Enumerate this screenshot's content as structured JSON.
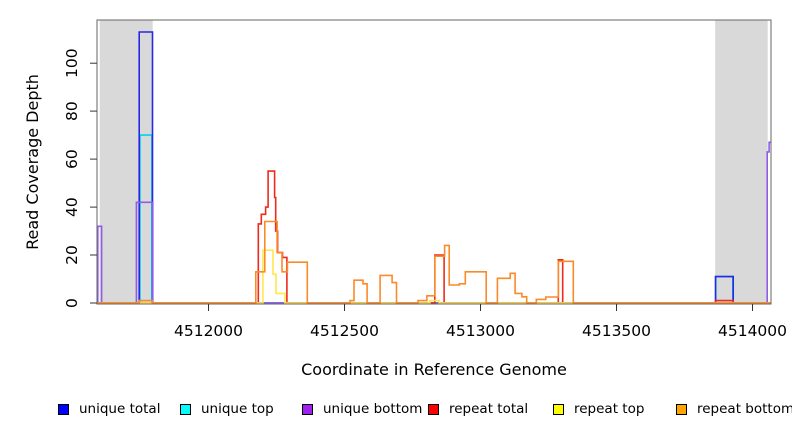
{
  "chart_data": {
    "type": "line",
    "title": "",
    "xlabel": "Coordinate in Reference Genome",
    "ylabel": "Read Coverage Depth",
    "x_ticks": [
      4512000,
      4512500,
      4513000,
      4513500,
      4514000
    ],
    "y_ticks": [
      0,
      20,
      40,
      60,
      80,
      100
    ],
    "xlim": [
      4511590,
      4514068
    ],
    "ylim": [
      0,
      118
    ],
    "grid": false,
    "legend_position": "bottom",
    "shade_color": "#d9d9d9",
    "border_color": "#666666",
    "shaded_regions": [
      {
        "from": 4511600,
        "to": 4511795
      },
      {
        "from": 4513863,
        "to": 4514056
      }
    ],
    "draw_order": [
      1,
      0,
      2,
      3,
      4,
      5
    ],
    "series": [
      {
        "name": "unique-total",
        "label": "unique total",
        "swatch_color": "#0000ff",
        "line_color": "#2727e8",
        "points": [
          [
            4511590,
            0
          ],
          [
            4511745,
            113
          ],
          [
            4511794,
            0
          ],
          [
            4513864,
            11
          ],
          [
            4513929,
            0
          ]
        ]
      },
      {
        "name": "unique-top",
        "label": "unique top",
        "swatch_color": "#00ffff",
        "line_color": "#00d5e8",
        "points": [
          [
            4511590,
            0
          ],
          [
            4511748,
            70
          ],
          [
            4511792,
            0
          ],
          [
            4513865,
            11
          ],
          [
            4513928,
            0
          ]
        ]
      },
      {
        "name": "unique-bottom",
        "label": "unique bottom",
        "swatch_color": "#a020f0",
        "line_color": "#8f5de8",
        "points": [
          [
            4511590,
            0
          ],
          [
            4511593,
            32
          ],
          [
            4511607,
            0
          ],
          [
            4511735,
            42
          ],
          [
            4511795,
            0
          ],
          [
            4514054,
            63
          ],
          [
            4514061,
            67
          ]
        ]
      },
      {
        "name": "repeat-total",
        "label": "repeat total",
        "swatch_color": "#ff0000",
        "line_color": "#ee2a1e",
        "points": [
          [
            4511590,
            0
          ],
          [
            4512183,
            33
          ],
          [
            4512194,
            37
          ],
          [
            4512210,
            40
          ],
          [
            4512219,
            55
          ],
          [
            4512243,
            44
          ],
          [
            4512247,
            30
          ],
          [
            4512254,
            21
          ],
          [
            4512272,
            19
          ],
          [
            4512288,
            0
          ],
          [
            4512832,
            20
          ],
          [
            4512866,
            0
          ],
          [
            4513286,
            18
          ],
          [
            4513302,
            0
          ],
          [
            4513864,
            1
          ],
          [
            4513929,
            0
          ]
        ]
      },
      {
        "name": "repeat-top",
        "label": "repeat top",
        "swatch_color": "#ffff00",
        "line_color": "#ffe84d",
        "points": [
          [
            4511590,
            0
          ],
          [
            4512200,
            22
          ],
          [
            4512237,
            12
          ],
          [
            4512248,
            4
          ],
          [
            4512281,
            0
          ],
          [
            4512814,
            1
          ],
          [
            4512848,
            0
          ]
        ]
      },
      {
        "name": "repeat-bottom",
        "label": "repeat bottom",
        "swatch_color": "#ffa500",
        "line_color": "#fb8a28",
        "points": [
          [
            4511590,
            0
          ],
          [
            4511745,
            1
          ],
          [
            4511793,
            0
          ],
          [
            4512174,
            13
          ],
          [
            4512207,
            34
          ],
          [
            4512252,
            21
          ],
          [
            4512270,
            13
          ],
          [
            4512290,
            17
          ],
          [
            4512363,
            0
          ],
          [
            4512520,
            1
          ],
          [
            4512535,
            9.5
          ],
          [
            4512568,
            8
          ],
          [
            4512583,
            0
          ],
          [
            4512631,
            11.5
          ],
          [
            4512675,
            8.5
          ],
          [
            4512691,
            0
          ],
          [
            4512770,
            1
          ],
          [
            4512803,
            3
          ],
          [
            4512832,
            19.5
          ],
          [
            4512868,
            24
          ],
          [
            4512885,
            7.5
          ],
          [
            4512922,
            8
          ],
          [
            4512944,
            13
          ],
          [
            4513021,
            0
          ],
          [
            4513062,
            10.3
          ],
          [
            4513109,
            12.4
          ],
          [
            4513127,
            4
          ],
          [
            4513152,
            2.6
          ],
          [
            4513170,
            0
          ],
          [
            4513205,
            1.5
          ],
          [
            4513240,
            2.5
          ],
          [
            4513286,
            17.4
          ],
          [
            4513341,
            0
          ]
        ]
      }
    ],
    "legend_x_positions": [
      58,
      180,
      302,
      428,
      553,
      676
    ],
    "legend_y": 401
  }
}
